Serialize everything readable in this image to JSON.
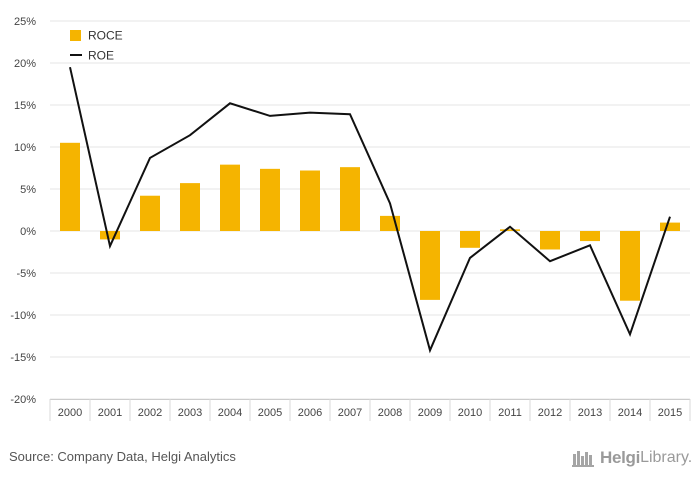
{
  "chart_data": {
    "type": "bar",
    "categories": [
      "2000",
      "2001",
      "2002",
      "2003",
      "2004",
      "2005",
      "2006",
      "2007",
      "2008",
      "2009",
      "2010",
      "2011",
      "2012",
      "2013",
      "2014",
      "2015"
    ],
    "series": [
      {
        "name": "ROCE",
        "type": "bar",
        "color": "#f5b400",
        "values": [
          10.5,
          -1.0,
          4.2,
          5.7,
          7.9,
          7.4,
          7.2,
          7.6,
          1.8,
          -8.2,
          -2.0,
          0.2,
          -2.2,
          -1.2,
          -8.3,
          1.0
        ]
      },
      {
        "name": "ROE",
        "type": "line",
        "color": "#111111",
        "values": [
          19.5,
          -1.8,
          8.7,
          11.4,
          15.2,
          13.7,
          14.1,
          13.9,
          3.3,
          -14.2,
          -3.2,
          0.5,
          -3.6,
          -1.7,
          -12.3,
          1.7
        ]
      }
    ],
    "y_ticks": [
      "25%",
      "20%",
      "15%",
      "10%",
      "5%",
      "0%",
      "-5%",
      "-10%",
      "-15%",
      "-20%"
    ],
    "ylim": [
      -20,
      25
    ],
    "y_unit": "%",
    "grid": true,
    "legend_position": "top-left"
  },
  "footer": {
    "source": "Source: Company Data, Helgi Analytics",
    "logo_brand": "Helgi",
    "logo_suffix": "Library."
  }
}
